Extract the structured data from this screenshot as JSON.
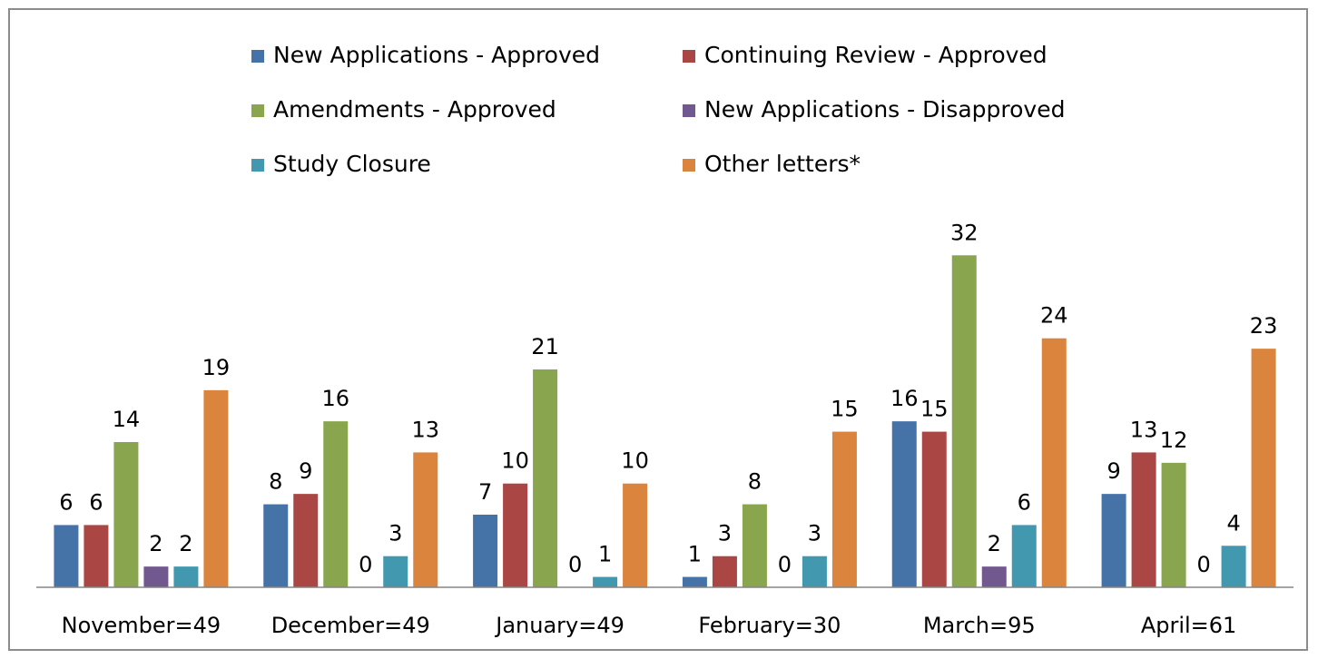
{
  "chart_data": {
    "type": "bar",
    "categories": [
      "November=49",
      "December=49",
      "January=49",
      "February=30",
      "March=95",
      "April=61"
    ],
    "series": [
      {
        "name": "New Applications - Approved",
        "color": "#4572a7",
        "values": [
          6,
          8,
          7,
          1,
          16,
          9
        ]
      },
      {
        "name": "Continuing Review - Approved",
        "color": "#aa4643",
        "values": [
          6,
          9,
          10,
          3,
          15,
          13
        ]
      },
      {
        "name": "Amendments - Approved",
        "color": "#89a54e",
        "values": [
          14,
          16,
          21,
          8,
          32,
          12
        ]
      },
      {
        "name": "New Applications - Disapproved",
        "color": "#71588f",
        "values": [
          2,
          0,
          0,
          0,
          2,
          0
        ]
      },
      {
        "name": "Study Closure",
        "color": "#4198af",
        "values": [
          2,
          3,
          1,
          3,
          6,
          4
        ]
      },
      {
        "name": "Other letters*",
        "color": "#db843d",
        "values": [
          19,
          13,
          10,
          15,
          24,
          23
        ]
      }
    ],
    "ylim": [
      0,
      35
    ],
    "legend": "top"
  }
}
